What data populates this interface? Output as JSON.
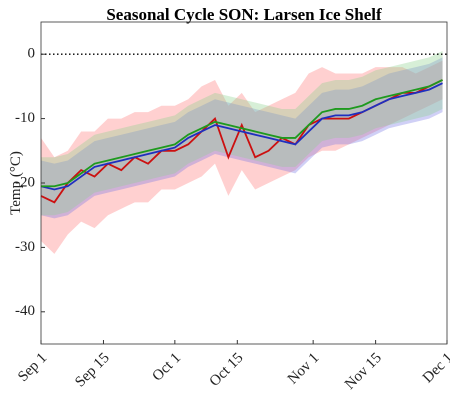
{
  "chart_data": {
    "type": "line",
    "title": "Seasonal Cycle SON: Larsen Ice Shelf",
    "ylabel": "Temp (°C)",
    "x": [
      0,
      3,
      6,
      9,
      12,
      15,
      18,
      21,
      24,
      27,
      30,
      33,
      36,
      39,
      42,
      45,
      48,
      51,
      54,
      57,
      60,
      63,
      66,
      69,
      72,
      75,
      78,
      81,
      84,
      87,
      90
    ],
    "xlim": [
      0,
      91
    ],
    "xticks": [
      {
        "value": 0,
        "label": "Sep 1"
      },
      {
        "value": 14,
        "label": "Sep 15"
      },
      {
        "value": 30,
        "label": "Oct 1"
      },
      {
        "value": 44,
        "label": "Oct 15"
      },
      {
        "value": 61,
        "label": "Nov 1"
      },
      {
        "value": 75,
        "label": "Nov 15"
      },
      {
        "value": 91,
        "label": "Dec 1"
      }
    ],
    "ylim": [
      -45,
      5
    ],
    "yticks": [
      0,
      -10,
      -20,
      -30,
      -40
    ],
    "reference_line": 0,
    "series": [
      {
        "color": "#cc1010",
        "band_color": "rgba(255,110,110,0.32)",
        "values": [
          -22,
          -23,
          -20,
          -18,
          -19,
          -17,
          -18,
          -16,
          -17,
          -15,
          -15,
          -14,
          -12,
          -10,
          -16,
          -11,
          -16,
          -15,
          -13,
          -14,
          -11,
          -10,
          -10,
          -10,
          -9,
          -8,
          -7,
          -6,
          -6,
          -5,
          -4
        ],
        "lower": [
          -29,
          -31,
          -28,
          -26,
          -27,
          -25,
          -24,
          -23,
          -23,
          -21,
          -21,
          -20,
          -19,
          -17,
          -22,
          -18,
          -21,
          -20,
          -19,
          -18,
          -16,
          -15,
          -15,
          -14,
          -13,
          -12,
          -11,
          -10,
          -9,
          -8,
          -7
        ],
        "upper": [
          -13,
          -16,
          -15,
          -12,
          -12,
          -10,
          -10,
          -9,
          -9,
          -8,
          -8,
          -7,
          -5,
          -4,
          -8,
          -6,
          -9,
          -8,
          -7,
          -6,
          -3,
          -2,
          -3,
          -3,
          -3,
          -2,
          -2,
          -2,
          -3,
          -2,
          -1
        ]
      },
      {
        "color": "#1f2fbf",
        "band_color": "rgba(120,120,230,0.35)",
        "values": [
          -20.5,
          -21,
          -20.5,
          -19,
          -17.5,
          -17,
          -16.5,
          -16,
          -15.5,
          -15,
          -14.5,
          -13,
          -12,
          -11,
          -11.5,
          -12,
          -12.5,
          -13,
          -13.5,
          -14,
          -12,
          -10,
          -9.5,
          -9.5,
          -9,
          -8,
          -7,
          -6.5,
          -6,
          -5.5,
          -4.5
        ],
        "lower": [
          -25,
          -25.5,
          -25,
          -23.5,
          -22,
          -21.5,
          -21,
          -20.5,
          -20,
          -19.5,
          -19,
          -17.5,
          -16.5,
          -15.5,
          -16,
          -16.5,
          -17,
          -17.5,
          -18,
          -18.5,
          -16.5,
          -14.5,
          -14,
          -14,
          -13.5,
          -12.5,
          -11.5,
          -11,
          -10.5,
          -10,
          -9
        ],
        "upper": [
          -16.5,
          -17,
          -16.5,
          -15,
          -13.5,
          -13,
          -12.5,
          -12,
          -11.5,
          -11,
          -10.5,
          -9,
          -8,
          -7,
          -7.5,
          -8,
          -8.5,
          -9,
          -9.5,
          -10,
          -8,
          -6,
          -5.5,
          -5.5,
          -5,
          -4,
          -3,
          -2.5,
          -2,
          -1.5,
          -0.5
        ]
      },
      {
        "color": "#1e9a1e",
        "band_color": "rgba(140,210,140,0.35)",
        "values": [
          -20.5,
          -20.5,
          -20,
          -18.5,
          -17,
          -16.5,
          -16,
          -15.5,
          -15,
          -14.5,
          -14,
          -12.5,
          -11.5,
          -10.5,
          -11,
          -11.5,
          -12,
          -12.5,
          -13,
          -13,
          -11,
          -9,
          -8.5,
          -8.5,
          -8,
          -7,
          -6.5,
          -6,
          -5.5,
          -5,
          -4
        ],
        "lower": [
          -25,
          -25,
          -24.5,
          -23,
          -21.5,
          -21,
          -20.5,
          -20,
          -19.5,
          -19,
          -18.5,
          -17,
          -16,
          -15,
          -15.5,
          -16,
          -16.5,
          -17,
          -17.5,
          -17.5,
          -15.5,
          -13.5,
          -13,
          -13,
          -12.5,
          -11.5,
          -11,
          -10.5,
          -10,
          -9.5,
          -8.5
        ],
        "upper": [
          -16,
          -16,
          -15.5,
          -14,
          -12.5,
          -12,
          -11.5,
          -11,
          -10.5,
          -10,
          -9.5,
          -8,
          -7,
          -6,
          -6.5,
          -7,
          -7.5,
          -8,
          -8.5,
          -8.5,
          -6.5,
          -4.5,
          -4,
          -4,
          -3.5,
          -2.5,
          -2,
          -1.5,
          -1,
          -0.5,
          0.5
        ]
      }
    ]
  }
}
